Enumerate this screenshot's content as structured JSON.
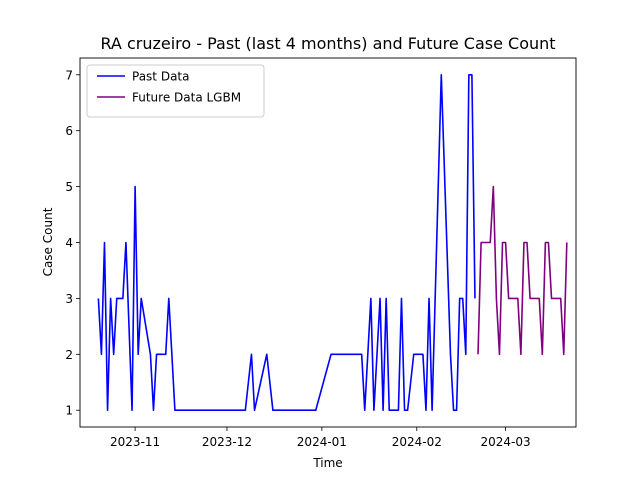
{
  "chart_data": {
    "type": "line",
    "title": "RA cruzeiro - Past (last 4 months) and Future Case Count",
    "xlabel": "Time",
    "ylabel": "Case Count",
    "xlim": [
      "2023-10-14",
      "2024-03-24"
    ],
    "ylim": [
      0.7,
      7.3
    ],
    "x_ticks": [
      "2023-11",
      "2023-12",
      "2024-01",
      "2024-02",
      "2024-03"
    ],
    "y_ticks": [
      1,
      2,
      3,
      4,
      5,
      6,
      7
    ],
    "grid": false,
    "legend_position": "top-left",
    "series": [
      {
        "name": "Past Data",
        "color": "#0000ff",
        "points": [
          [
            "2023-10-20",
            3
          ],
          [
            "2023-10-21",
            2
          ],
          [
            "2023-10-22",
            4
          ],
          [
            "2023-10-23",
            1
          ],
          [
            "2023-10-24",
            3
          ],
          [
            "2023-10-25",
            2
          ],
          [
            "2023-10-26",
            3
          ],
          [
            "2023-10-28",
            3
          ],
          [
            "2023-10-29",
            4
          ],
          [
            "2023-10-31",
            1
          ],
          [
            "2023-11-01",
            5
          ],
          [
            "2023-11-02",
            2
          ],
          [
            "2023-11-03",
            3
          ],
          [
            "2023-11-06",
            2
          ],
          [
            "2023-11-07",
            1
          ],
          [
            "2023-11-08",
            2
          ],
          [
            "2023-11-11",
            2
          ],
          [
            "2023-11-12",
            3
          ],
          [
            "2023-11-14",
            1
          ],
          [
            "2023-12-07",
            1
          ],
          [
            "2023-12-09",
            2
          ],
          [
            "2023-12-10",
            1
          ],
          [
            "2023-12-14",
            2
          ],
          [
            "2023-12-16",
            1
          ],
          [
            "2023-12-30",
            1
          ],
          [
            "2024-01-04",
            2
          ],
          [
            "2024-01-14",
            2
          ],
          [
            "2024-01-15",
            1
          ],
          [
            "2024-01-17",
            3
          ],
          [
            "2024-01-18",
            1
          ],
          [
            "2024-01-20",
            3
          ],
          [
            "2024-01-21",
            1
          ],
          [
            "2024-01-22",
            3
          ],
          [
            "2024-01-23",
            1
          ],
          [
            "2024-01-26",
            1
          ],
          [
            "2024-01-27",
            3
          ],
          [
            "2024-01-28",
            1
          ],
          [
            "2024-01-29",
            1
          ],
          [
            "2024-01-31",
            2
          ],
          [
            "2024-02-03",
            2
          ],
          [
            "2024-02-04",
            1
          ],
          [
            "2024-02-05",
            3
          ],
          [
            "2024-02-06",
            1
          ],
          [
            "2024-02-09",
            7
          ],
          [
            "2024-02-12",
            2
          ],
          [
            "2024-02-13",
            1
          ],
          [
            "2024-02-14",
            1
          ],
          [
            "2024-02-15",
            3
          ],
          [
            "2024-02-16",
            3
          ],
          [
            "2024-02-17",
            2
          ],
          [
            "2024-02-18",
            7
          ],
          [
            "2024-02-19",
            7
          ],
          [
            "2024-02-20",
            3
          ]
        ]
      },
      {
        "name": "Future Data LGBM",
        "color": "#800080",
        "points": [
          [
            "2024-02-21",
            2
          ],
          [
            "2024-02-22",
            4
          ],
          [
            "2024-02-23",
            4
          ],
          [
            "2024-02-24",
            4
          ],
          [
            "2024-02-25",
            4
          ],
          [
            "2024-02-26",
            5
          ],
          [
            "2024-02-27",
            3
          ],
          [
            "2024-02-28",
            2
          ],
          [
            "2024-02-29",
            4
          ],
          [
            "2024-03-01",
            4
          ],
          [
            "2024-03-02",
            3
          ],
          [
            "2024-03-03",
            3
          ],
          [
            "2024-03-04",
            3
          ],
          [
            "2024-03-05",
            3
          ],
          [
            "2024-03-06",
            2
          ],
          [
            "2024-03-07",
            4
          ],
          [
            "2024-03-08",
            4
          ],
          [
            "2024-03-09",
            3
          ],
          [
            "2024-03-10",
            3
          ],
          [
            "2024-03-11",
            3
          ],
          [
            "2024-03-12",
            3
          ],
          [
            "2024-03-13",
            2
          ],
          [
            "2024-03-14",
            4
          ],
          [
            "2024-03-15",
            4
          ],
          [
            "2024-03-16",
            3
          ],
          [
            "2024-03-17",
            3
          ],
          [
            "2024-03-18",
            3
          ],
          [
            "2024-03-19",
            3
          ],
          [
            "2024-03-20",
            2
          ],
          [
            "2024-03-21",
            4
          ]
        ]
      }
    ]
  }
}
